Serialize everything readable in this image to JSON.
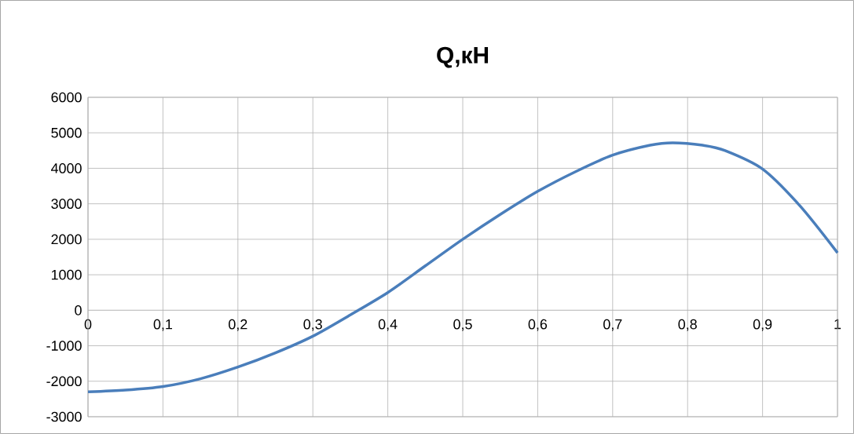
{
  "chart_data": {
    "type": "line",
    "title": "Q,кН",
    "x": [
      0,
      0.05,
      0.1,
      0.15,
      0.2,
      0.25,
      0.3,
      0.35,
      0.4,
      0.45,
      0.5,
      0.55,
      0.6,
      0.65,
      0.7,
      0.75,
      0.78,
      0.82,
      0.85,
      0.9,
      0.95,
      1
    ],
    "series": [
      {
        "color": "#4a7ebb",
        "values": [
          -2300,
          -2250,
          -2150,
          -1930,
          -1600,
          -1200,
          -730,
          -130,
          500,
          1250,
          2000,
          2700,
          3350,
          3900,
          4370,
          4650,
          4720,
          4650,
          4500,
          3980,
          2940,
          1620
        ]
      }
    ],
    "xlim": [
      0,
      1
    ],
    "ylim": [
      -3000,
      6000
    ],
    "xticks": [
      0,
      {
        "value": 0.1,
        "label": "0,1"
      },
      {
        "value": 0.2,
        "label": "0,2"
      },
      {
        "value": 0.3,
        "label": "0,3"
      },
      {
        "value": 0.4,
        "label": "0,4"
      },
      {
        "value": 0.5,
        "label": "0,5"
      },
      {
        "value": 0.6,
        "label": "0,6"
      },
      {
        "value": 0.7,
        "label": "0,7"
      },
      {
        "value": 0.8,
        "label": "0,8"
      },
      {
        "value": 0.9,
        "label": "0,9"
      },
      1
    ],
    "yticks": [
      -3000,
      -2000,
      -1000,
      0,
      1000,
      2000,
      3000,
      4000,
      5000,
      6000
    ],
    "grid": true,
    "marker": "none",
    "line_style": "solid"
  }
}
